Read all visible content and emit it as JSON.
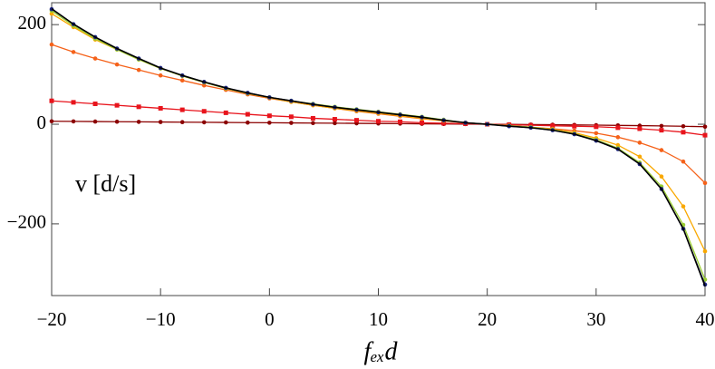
{
  "chart_data": {
    "type": "line",
    "annotation": "v [d/s]",
    "x_label": "fₑₓd",
    "x": [
      -20,
      -18,
      -16,
      -14,
      -12,
      -10,
      -8,
      -6,
      -4,
      -2,
      0,
      2,
      4,
      6,
      8,
      10,
      12,
      14,
      16,
      18,
      20,
      22,
      24,
      26,
      28,
      30,
      32,
      34,
      36,
      38,
      40
    ],
    "series": [
      {
        "color": "#8b0000",
        "marker": "circle",
        "values": [
          6,
          5.7,
          5.4,
          5.1,
          4.8,
          4.5,
          4.2,
          3.9,
          3.6,
          3.3,
          3,
          2.7,
          2.4,
          2.1,
          1.8,
          1.5,
          1.2,
          0.9,
          0.6,
          0.3,
          0,
          -0.3,
          -0.6,
          -1,
          -1.4,
          -1.8,
          -2.3,
          -2.8,
          -3.4,
          -4.1,
          -5
        ]
      },
      {
        "color": "#e8141c",
        "marker": "square",
        "values": [
          47,
          44,
          41,
          38,
          35,
          32,
          29,
          26,
          23,
          20,
          17,
          15,
          12,
          10,
          8,
          6,
          5,
          3,
          2,
          1,
          0,
          -1,
          -2,
          -3,
          -4,
          -5,
          -7,
          -9,
          -12,
          -16,
          -22
        ]
      },
      {
        "color": "#f5621a",
        "marker": "circle",
        "values": [
          160,
          145,
          132,
          120,
          109,
          98,
          88,
          78,
          69,
          60,
          52,
          45,
          38,
          32,
          26,
          21,
          16,
          11,
          7,
          3,
          0,
          -3,
          -6,
          -9,
          -13,
          -18,
          -26,
          -37,
          -52,
          -75,
          -118
        ]
      },
      {
        "color": "#f9a800",
        "marker": "circle",
        "values": [
          222,
          195,
          170,
          150,
          130,
          112,
          97,
          84,
          72,
          62,
          53,
          45,
          38,
          32,
          27,
          22,
          17,
          12,
          7,
          3,
          0,
          -3,
          -6,
          -10,
          -17,
          -28,
          -42,
          -65,
          -105,
          -165,
          -255
        ]
      },
      {
        "color": "#9acd32",
        "marker": "circle",
        "values": [
          228,
          198,
          172,
          150,
          130,
          112,
          97,
          84,
          72,
          62,
          54,
          47,
          41,
          35,
          30,
          25,
          20,
          15,
          9,
          3,
          0,
          -3,
          -6,
          -11,
          -19,
          -31,
          -48,
          -77,
          -125,
          -202,
          -312
        ]
      },
      {
        "color": "#1a237e",
        "marker": "circle",
        "values": [
          231,
          201,
          175,
          152,
          132,
          113,
          98,
          85,
          73,
          63,
          54,
          47,
          40,
          34,
          29,
          24,
          19,
          14,
          8,
          3,
          0,
          -4,
          -7,
          -12,
          -20,
          -33,
          -50,
          -80,
          -130,
          -210,
          -322
        ]
      },
      {
        "color": "#000000",
        "marker": "none",
        "values": [
          232,
          201,
          175,
          152,
          132,
          113,
          98,
          85,
          73,
          63,
          54,
          47,
          40,
          34,
          29,
          24,
          19,
          14,
          8,
          3,
          0,
          -4,
          -7,
          -12,
          -20,
          -33,
          -50,
          -80,
          -130,
          -210,
          -325
        ]
      }
    ],
    "xlim": [
      -20,
      40
    ],
    "ylim": [
      -344,
      244
    ],
    "xticks": [
      {
        "value": -20,
        "label": "−20"
      },
      {
        "value": -10,
        "label": "−10"
      },
      0,
      10,
      20,
      30,
      40
    ],
    "yticks": [
      {
        "value": -200,
        "label": "−200"
      },
      0,
      200
    ]
  }
}
